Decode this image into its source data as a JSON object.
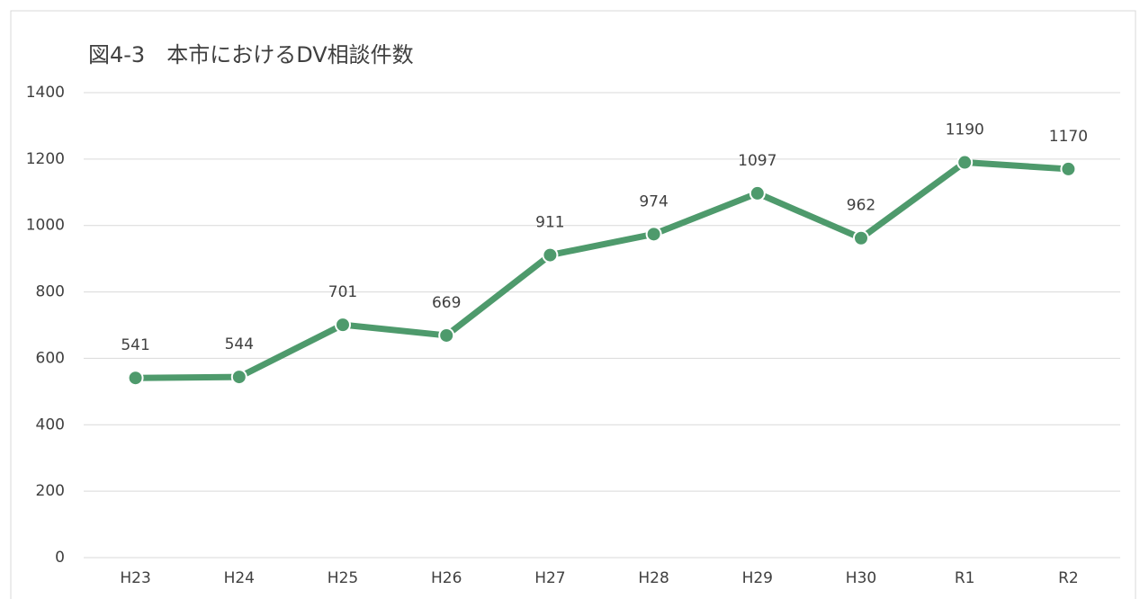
{
  "chart_data": {
    "type": "line",
    "title": "図4-3　本市におけるDV相談件数",
    "categories": [
      "H23",
      "H24",
      "H25",
      "H26",
      "H27",
      "H28",
      "H29",
      "H30",
      "R1",
      "R2"
    ],
    "values": [
      541,
      544,
      701,
      669,
      911,
      974,
      1097,
      962,
      1190,
      1170
    ],
    "color": "#4e9a6c",
    "ylim": [
      0,
      1400
    ],
    "yticks": [
      0,
      200,
      400,
      600,
      800,
      1000,
      1200,
      1400
    ],
    "grid": true
  }
}
